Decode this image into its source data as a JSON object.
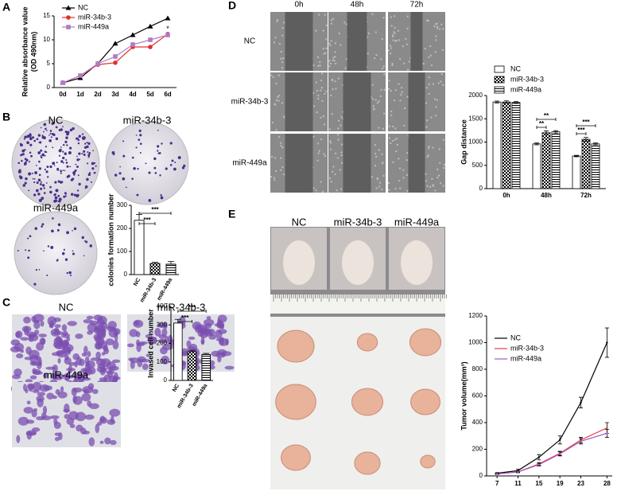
{
  "panel_labels": [
    "A",
    "B",
    "C",
    "D",
    "E"
  ],
  "images": {
    "B": [
      "NC",
      "miR-34b-3",
      "miR-449a"
    ],
    "C": [
      "NC",
      "miR-34b-3",
      "miR-449a"
    ],
    "D": {
      "columns": [
        "0h",
        "48h",
        "72h"
      ],
      "rows": [
        "NC",
        "miR-34b-3",
        "miR-449a"
      ]
    },
    "E": [
      "NC",
      "miR-34b-3",
      "miR-449a"
    ]
  },
  "chart_data": [
    {
      "type": "line",
      "y_label": [
        "Relative absorbance value",
        "(OD 490nm)"
      ],
      "categories": [
        "0d",
        "1d",
        "2d",
        "3d",
        "4d",
        "5d",
        "6d"
      ],
      "ylim": [
        0,
        15
      ],
      "yticks": [
        0,
        5,
        10,
        15
      ],
      "legend": "top-left",
      "annotations": [
        "*"
      ],
      "series": [
        {
          "name": "NC",
          "color": "#000000",
          "marker": "triangle",
          "values": [
            1,
            2,
            5,
            9.2,
            11,
            12.8,
            14.5
          ]
        },
        {
          "name": "miR-34b-3",
          "color": "#e03030",
          "marker": "circle",
          "values": [
            1,
            2.5,
            4.8,
            5.2,
            8.5,
            8.5,
            11.2
          ]
        },
        {
          "name": "miR-449a",
          "color": "#b07cc6",
          "marker": "square",
          "values": [
            1,
            2.5,
            5,
            6.5,
            9,
            10,
            11
          ]
        }
      ]
    },
    {
      "type": "bar",
      "y_label": "colonies formation number",
      "categories": [
        "NC",
        "miR-34b-3",
        "miR-449a"
      ],
      "values": [
        235,
        48,
        45
      ],
      "errors": [
        25,
        5,
        12
      ],
      "fills": [
        "white",
        "checker",
        "stripes"
      ],
      "ylim": [
        0,
        300
      ],
      "yticks": [
        0,
        100,
        200,
        300
      ],
      "annotations": [
        "***",
        "***"
      ]
    },
    {
      "type": "bar",
      "y_label": "Invased cell number",
      "categories": [
        "NC",
        "miR-34b-3",
        "miR-449a"
      ],
      "values": [
        310,
        155,
        140
      ],
      "errors": [
        20,
        8,
        6
      ],
      "fills": [
        "white",
        "checker",
        "stripes"
      ],
      "ylim": [
        0,
        400
      ],
      "yticks": [
        0,
        100,
        200,
        300,
        400
      ],
      "annotations": [
        "***",
        "***"
      ]
    },
    {
      "type": "grouped_bar",
      "y_label": "Gap distance",
      "legend": "top-left",
      "categories": [
        "0h",
        "48h",
        "72h"
      ],
      "ylim": [
        0,
        2000
      ],
      "yticks": [
        0,
        500,
        1000,
        1500,
        2000
      ],
      "annotations": [
        "**",
        "**",
        "***",
        "***"
      ],
      "series": [
        {
          "name": "NC",
          "fill": "white",
          "values": [
            1860,
            960,
            700
          ],
          "errors": [
            20,
            20,
            15
          ]
        },
        {
          "name": "miR-34b-3",
          "fill": "checker",
          "values": [
            1860,
            1200,
            1060
          ],
          "errors": [
            25,
            40,
            40
          ]
        },
        {
          "name": "miR-449a",
          "fill": "stripes",
          "values": [
            1850,
            1220,
            960
          ],
          "errors": [
            20,
            25,
            20
          ]
        }
      ]
    },
    {
      "type": "line",
      "y_label": "Tumor volume(mm³)",
      "legend": "top-left",
      "x": [
        7,
        11,
        15,
        19,
        23,
        28
      ],
      "xlim": [
        5,
        29
      ],
      "xticks": [
        7,
        11,
        15,
        19,
        23,
        28
      ],
      "ylim": [
        0,
        1200
      ],
      "yticks": [
        0,
        200,
        400,
        600,
        800,
        1000,
        1200
      ],
      "series": [
        {
          "name": "NC",
          "color": "#000000",
          "marker": "none",
          "values": [
            20,
            40,
            140,
            270,
            550,
            1000
          ],
          "errors": [
            5,
            10,
            20,
            30,
            40,
            110
          ]
        },
        {
          "name": "miR-34b-3",
          "color": "#e8404a",
          "marker": "none",
          "values": [
            15,
            30,
            90,
            170,
            270,
            360
          ],
          "errors": [
            3,
            5,
            10,
            15,
            20,
            40
          ]
        },
        {
          "name": "miR-449a",
          "color": "#9c5cc0",
          "marker": "none",
          "values": [
            15,
            30,
            85,
            165,
            260,
            320
          ],
          "errors": [
            3,
            5,
            10,
            15,
            20,
            30
          ]
        }
      ]
    }
  ]
}
